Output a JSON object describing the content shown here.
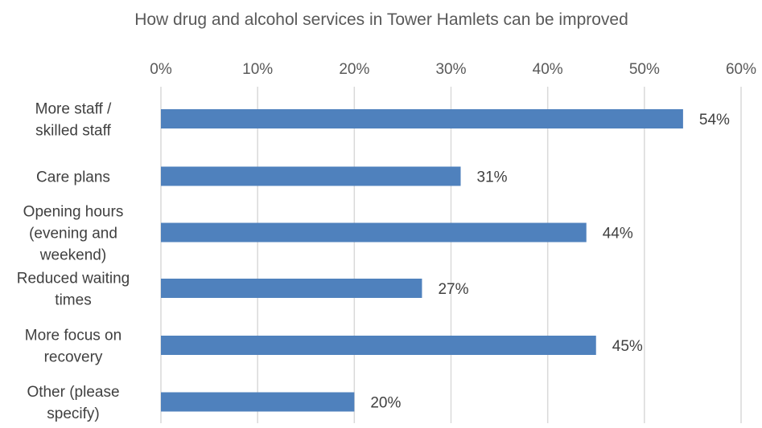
{
  "chart_data": {
    "type": "bar",
    "orientation": "horizontal",
    "title": "How drug and alcohol services in Tower Hamlets can be improved",
    "categories": [
      [
        "More staff /",
        "skilled staff"
      ],
      [
        "Care plans"
      ],
      [
        "Opening hours",
        "(evening and",
        "weekend)"
      ],
      [
        "Reduced waiting",
        "times"
      ],
      [
        "More focus on",
        "recovery"
      ],
      [
        "Other (please",
        "specify)"
      ]
    ],
    "values": [
      54,
      31,
      44,
      27,
      45,
      20
    ],
    "data_labels": [
      "54%",
      "31%",
      "44%",
      "27%",
      "45%",
      "20%"
    ],
    "xlim": [
      0,
      60
    ],
    "xticks": [
      0,
      10,
      20,
      30,
      40,
      50,
      60
    ],
    "xtick_labels": [
      "0%",
      "10%",
      "20%",
      "30%",
      "40%",
      "50%",
      "60%"
    ],
    "x_axis_position": "top",
    "grid": true,
    "legend": "none",
    "colors": {
      "bar": "#4f81bd",
      "grid": "#d9d9d9",
      "text": "#595959"
    }
  }
}
